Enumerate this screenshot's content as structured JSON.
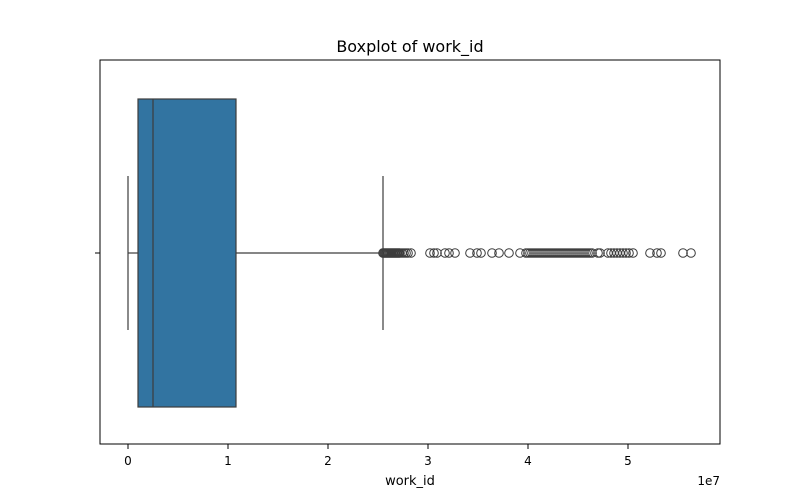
{
  "chart_data": {
    "type": "boxplot",
    "title": "Boxplot of work_id",
    "xlabel": "work_id",
    "ylabel": "",
    "orientation": "horizontal",
    "x_scale_label": "1e7",
    "xlim": [
      -2800000,
      59200000
    ],
    "xticks": [
      0,
      10000000,
      20000000,
      30000000,
      40000000,
      50000000
    ],
    "xtick_labels": [
      "0",
      "1",
      "2",
      "3",
      "4",
      "5"
    ],
    "colors": {
      "box": "#3274a1",
      "line": "#3d3d3d",
      "frame": "#000000"
    },
    "box": {
      "min": 0,
      "q1": 1000000,
      "median": 2500000,
      "q3": 10800000,
      "whisker_high": 25500000
    },
    "outliers": [
      25500000,
      25600000,
      25700000,
      25800000,
      25900000,
      26000000,
      26100000,
      26200000,
      26300000,
      26400000,
      26500000,
      26600000,
      26700000,
      26800000,
      26900000,
      27000000,
      27100000,
      27200000,
      27400000,
      27600000,
      27800000,
      28000000,
      28300000,
      30200000,
      30600000,
      30900000,
      31700000,
      32100000,
      32700000,
      34200000,
      34900000,
      35300000,
      36400000,
      37100000,
      38100000,
      39200000,
      39800000,
      40000000,
      40200000,
      40400000,
      40600000,
      40800000,
      41000000,
      41200000,
      41400000,
      41600000,
      41800000,
      42000000,
      42200000,
      42400000,
      42600000,
      42800000,
      43000000,
      43200000,
      43400000,
      43600000,
      43800000,
      44000000,
      44200000,
      44400000,
      44600000,
      44800000,
      45000000,
      45200000,
      45400000,
      45600000,
      45800000,
      46000000,
      46200000,
      46400000,
      47000000,
      47200000,
      48000000,
      48300000,
      48600000,
      48900000,
      49200000,
      49500000,
      49800000,
      50100000,
      50500000,
      52200000,
      52900000,
      53300000,
      55500000,
      56300000
    ]
  }
}
